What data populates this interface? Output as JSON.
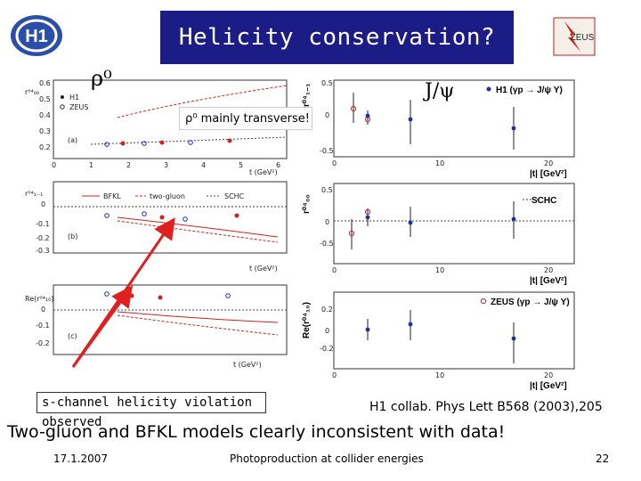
{
  "slide": {
    "title": "Helicity conservation?",
    "rho_label": "ρ⁰",
    "jpsi_label": "J/ψ",
    "note_transverse": "ρ⁰ mainly transverse!",
    "note_violation": "s-channel helicity violation observed",
    "reference": "H1 collab. Phys Lett B568 (2003),205",
    "conclusion": "Two-gluon and BFKL models clearly inconsistent with data!",
    "footer_date": "17.1.2007",
    "footer_center": "Photoproduction at collider energies",
    "page_number": "22",
    "logo_left_text": "H1",
    "logo_right_text": "ZEUS"
  },
  "colors": {
    "title_bg": "#1c1c86",
    "h1_blue": "#1a2fb0",
    "zeus_red": "#cc2222",
    "arrow_red": "#e02020"
  },
  "rho_panels": {
    "legend_h1": "H1",
    "legend_zeus": "ZEUS",
    "legend_bfkl": "BFKL",
    "legend_twogluon": "two-gluon",
    "legend_schc": "SCHC",
    "xlabel": "t (GeV²)",
    "xticks": [
      "0",
      "1",
      "2",
      "3",
      "4",
      "5",
      "6"
    ],
    "panel_a": {
      "label": "(a)",
      "yticks": [
        "0.2",
        "0.3",
        "0.4",
        "0.5",
        "0.6"
      ]
    },
    "panel_b": {
      "label": "(b)",
      "yticks": [
        "0",
        "-0.1",
        "-0.2",
        "-0.3"
      ]
    },
    "panel_c": {
      "label": "(c)",
      "yticks": [
        "0",
        "-0.1",
        "-0.2"
      ]
    }
  },
  "jpsi_panels": {
    "legend_h1": "H1 (γp → J/ψ Y)",
    "legend_zeus": "ZEUS (γp → J/ψ Y)",
    "legend_schc": "SCHC",
    "xlabel": "|t| [GeV²]",
    "xticks": [
      "0",
      "10",
      "20"
    ],
    "panel_top": {
      "yticks": [
        "0.5",
        "0",
        "-0.5"
      ]
    },
    "panel_mid": {
      "yticks": [
        "0.5",
        "0",
        "-0.5"
      ]
    },
    "panel_bot": {
      "yticks": [
        "0.2",
        "0",
        "-0.2"
      ]
    },
    "ylabel_top": "r⁰⁴₁₋₁",
    "ylabel_mid": "r⁰⁴₀₀",
    "ylabel_bot": "Re(r⁰⁴₁₀)"
  }
}
